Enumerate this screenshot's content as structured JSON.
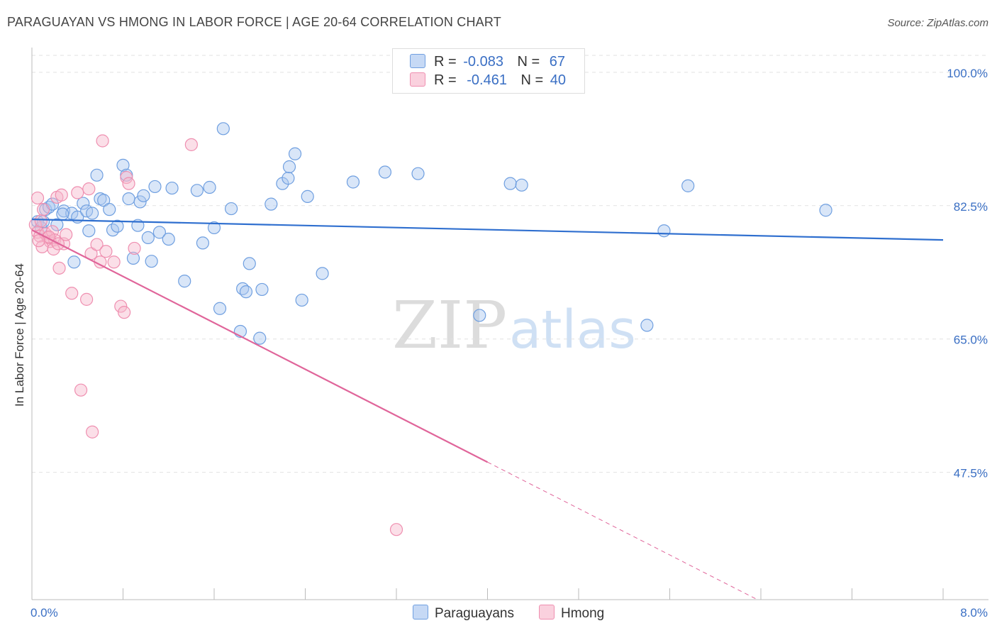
{
  "title": "PARAGUAYAN VS HMONG IN LABOR FORCE | AGE 20-64 CORRELATION CHART",
  "source": "Source: ZipAtlas.com",
  "watermark": {
    "zip": "ZIP",
    "atlas": "atlas"
  },
  "legend": {
    "rows": [
      {
        "r_label": "R =",
        "r_value": "-0.083",
        "n_label": "N =",
        "n_value": "67"
      },
      {
        "r_label": "R =",
        "r_value": "-0.461",
        "n_label": "N =",
        "n_value": "40"
      }
    ]
  },
  "bottom_legend": {
    "paraguayans": "Paraguayans",
    "hmong": "Hmong"
  },
  "colors": {
    "blue_fill": "#aac8f0",
    "blue_stroke": "#6f9fe0",
    "blue_line": "#2f6fcf",
    "pink_fill": "#f6b8cc",
    "pink_stroke": "#ef8fb0",
    "pink_line": "#e0659a",
    "tick_label": "#3a6fc4",
    "grid": "#e2e2e2"
  },
  "chart_data": {
    "type": "scatter",
    "title": "PARAGUAYAN VS HMONG IN LABOR FORCE | AGE 20-64 CORRELATION CHART",
    "xlabel": "",
    "ylabel": "In Labor Force | Age 20-64",
    "xlim": [
      0,
      8.0
    ],
    "ylim": [
      30.8,
      102.5
    ],
    "x_tick_labels": [
      "0.0%",
      "8.0%"
    ],
    "y_ticks": [
      47.5,
      65.0,
      82.5,
      100.0
    ],
    "y_tick_labels": [
      "47.5%",
      "65.0%",
      "82.5%",
      "100.0%"
    ],
    "series": [
      {
        "name": "Paraguayans",
        "r": -0.083,
        "n": 67,
        "trend": {
          "x": [
            0.0,
            8.0
          ],
          "y": [
            80.7,
            78.0
          ],
          "dashed_from_x": null
        },
        "points": [
          [
            0.05,
            80.4
          ],
          [
            0.08,
            79.6
          ],
          [
            0.1,
            80.4
          ],
          [
            0.12,
            82.0
          ],
          [
            0.15,
            82.3
          ],
          [
            0.18,
            82.7
          ],
          [
            0.22,
            80.0
          ],
          [
            0.28,
            81.8
          ],
          [
            0.35,
            81.5
          ],
          [
            0.37,
            75.1
          ],
          [
            0.4,
            81.0
          ],
          [
            0.45,
            82.8
          ],
          [
            0.48,
            81.8
          ],
          [
            0.5,
            79.2
          ],
          [
            0.53,
            81.5
          ],
          [
            0.57,
            86.5
          ],
          [
            0.6,
            83.4
          ],
          [
            0.63,
            83.2
          ],
          [
            0.68,
            82.0
          ],
          [
            0.71,
            79.3
          ],
          [
            0.75,
            79.8
          ],
          [
            0.8,
            87.8
          ],
          [
            0.83,
            86.5
          ],
          [
            0.85,
            83.4
          ],
          [
            0.89,
            75.6
          ],
          [
            0.93,
            79.9
          ],
          [
            0.95,
            83.0
          ],
          [
            0.98,
            83.8
          ],
          [
            1.02,
            78.3
          ],
          [
            1.05,
            75.2
          ],
          [
            1.08,
            85.0
          ],
          [
            1.12,
            79.0
          ],
          [
            1.2,
            78.1
          ],
          [
            1.23,
            84.8
          ],
          [
            1.34,
            72.6
          ],
          [
            1.45,
            84.5
          ],
          [
            1.5,
            77.6
          ],
          [
            1.56,
            84.9
          ],
          [
            1.6,
            79.6
          ],
          [
            1.65,
            69.0
          ],
          [
            1.68,
            92.6
          ],
          [
            1.75,
            82.1
          ],
          [
            1.83,
            66.0
          ],
          [
            1.85,
            71.6
          ],
          [
            1.88,
            71.2
          ],
          [
            1.91,
            74.9
          ],
          [
            2.0,
            65.1
          ],
          [
            2.02,
            71.5
          ],
          [
            2.1,
            82.7
          ],
          [
            2.2,
            85.4
          ],
          [
            2.25,
            86.1
          ],
          [
            2.26,
            87.6
          ],
          [
            2.31,
            89.3
          ],
          [
            2.37,
            70.1
          ],
          [
            2.42,
            83.7
          ],
          [
            2.55,
            73.6
          ],
          [
            2.82,
            85.6
          ],
          [
            3.1,
            86.9
          ],
          [
            3.39,
            86.7
          ],
          [
            3.93,
            68.1
          ],
          [
            4.2,
            85.4
          ],
          [
            4.3,
            85.2
          ],
          [
            5.4,
            66.8
          ],
          [
            5.55,
            79.2
          ],
          [
            5.76,
            85.1
          ],
          [
            6.97,
            81.9
          ],
          [
            0.27,
            81.4
          ]
        ]
      },
      {
        "name": "Hmong",
        "r": -0.461,
        "n": 40,
        "trend": {
          "x": [
            0.0,
            6.37
          ],
          "y": [
            79.3,
            30.8
          ],
          "dashed_from_x": 4.0
        },
        "points": [
          [
            0.03,
            80.0
          ],
          [
            0.05,
            79.0
          ],
          [
            0.07,
            78.5
          ],
          [
            0.08,
            80.5
          ],
          [
            0.1,
            82.0
          ],
          [
            0.12,
            78.8
          ],
          [
            0.14,
            78.3
          ],
          [
            0.16,
            77.8
          ],
          [
            0.18,
            79.1
          ],
          [
            0.2,
            78.0
          ],
          [
            0.22,
            83.6
          ],
          [
            0.24,
            74.3
          ],
          [
            0.26,
            83.9
          ],
          [
            0.28,
            77.5
          ],
          [
            0.3,
            78.7
          ],
          [
            0.35,
            71.0
          ],
          [
            0.4,
            84.2
          ],
          [
            0.43,
            58.3
          ],
          [
            0.48,
            70.2
          ],
          [
            0.5,
            84.7
          ],
          [
            0.52,
            76.2
          ],
          [
            0.53,
            52.8
          ],
          [
            0.57,
            77.4
          ],
          [
            0.6,
            75.1
          ],
          [
            0.62,
            91.0
          ],
          [
            0.65,
            76.5
          ],
          [
            0.72,
            75.1
          ],
          [
            0.78,
            69.3
          ],
          [
            0.81,
            68.5
          ],
          [
            0.83,
            86.2
          ],
          [
            0.85,
            85.4
          ],
          [
            0.9,
            76.9
          ],
          [
            0.05,
            83.5
          ],
          [
            0.09,
            77.1
          ],
          [
            0.15,
            78.4
          ],
          [
            0.19,
            76.8
          ],
          [
            0.23,
            77.5
          ],
          [
            1.4,
            90.5
          ],
          [
            3.2,
            40.0
          ],
          [
            0.06,
            77.9
          ]
        ]
      }
    ],
    "legend_position": "top-center"
  }
}
